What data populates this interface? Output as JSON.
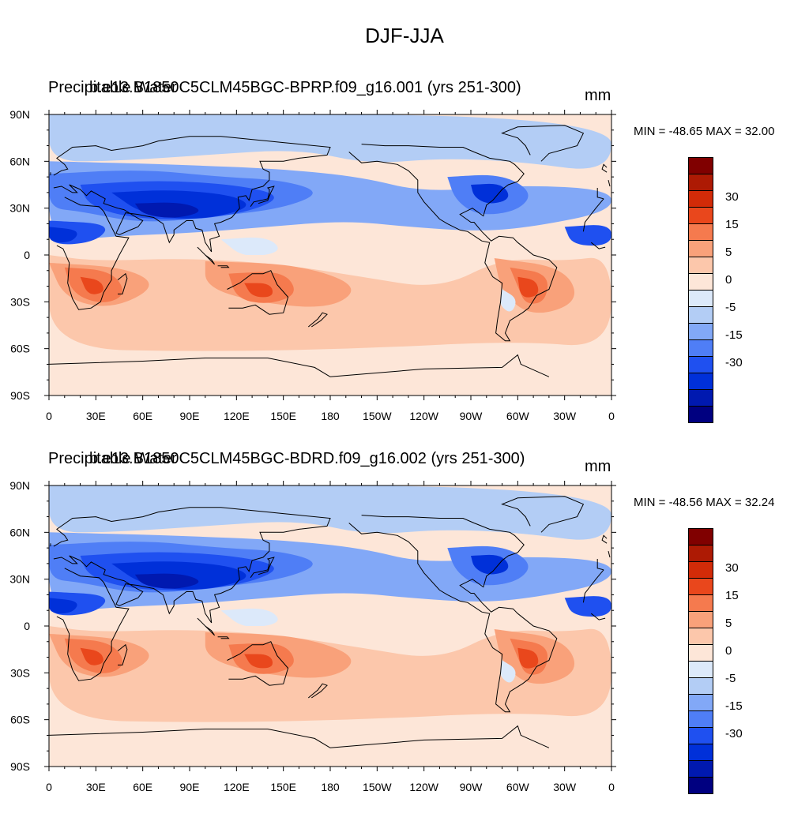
{
  "figure": {
    "title": "DJF-JJA"
  },
  "colors": {
    "palette": [
      "#000080",
      "#0019b0",
      "#0030d9",
      "#1f50f0",
      "#4f7ef6",
      "#82a8f7",
      "#b3cdf5",
      "#dce9fa",
      "#fde6d8",
      "#fcc7ab",
      "#f9a17a",
      "#f57a4e",
      "#e9471c",
      "#d22b08",
      "#ad1a04",
      "#800000"
    ],
    "coast": "#000000",
    "axis": "#000000"
  },
  "panels": [
    {
      "left_title": "Precipitable Water",
      "case_title": "b.e13.B1850C5CLM45BGC-BPRP.f09_g16.001 (yrs 251-300)",
      "units": "mm",
      "minmax": "MIN = -48.65 MAX =  32.00"
    },
    {
      "left_title": "Precipitable Water",
      "case_title": "b.e13.B1850C5CLM45BGC-BDRD.f09_g16.002 (yrs 251-300)",
      "units": "mm",
      "minmax": "MIN = -48.56 MAX =  32.24"
    }
  ],
  "axes": {
    "lat_labels": [
      "90N",
      "60N",
      "30N",
      "0",
      "30S",
      "60S",
      "90S"
    ],
    "lon_labels": [
      "0",
      "30E",
      "60E",
      "90E",
      "120E",
      "150E",
      "180",
      "150W",
      "120W",
      "90W",
      "60W",
      "30W",
      "0"
    ]
  },
  "colorbar": {
    "labels": [
      "30",
      "15",
      "5",
      "0",
      "-5",
      "-15",
      "-30"
    ],
    "levels": [
      -40,
      -35,
      -30,
      -25,
      -20,
      -15,
      -10,
      -5,
      0,
      5,
      10,
      15,
      20,
      25,
      30
    ]
  }
}
